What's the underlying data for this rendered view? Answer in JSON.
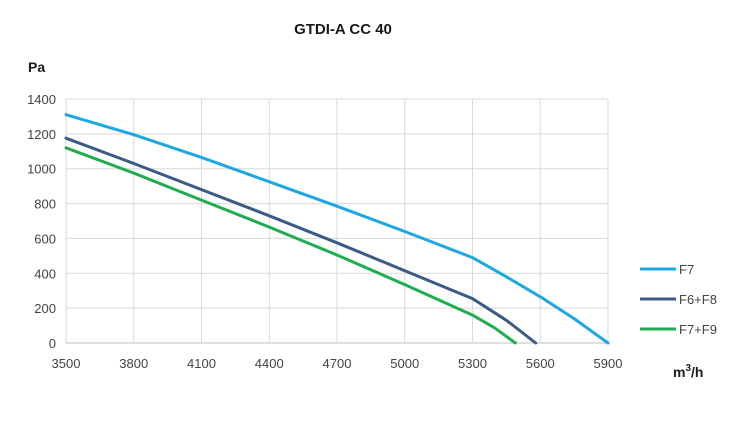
{
  "chart_data": {
    "type": "line",
    "title": "GTDI-A CC 40",
    "ylabel": "Pa",
    "xlabel_main": "m",
    "xlabel_sup": "3",
    "xlabel_tail": "/h",
    "xlim": [
      3500,
      5900
    ],
    "ylim": [
      0,
      1400
    ],
    "x_ticks": [
      "3500",
      "3800",
      "4100",
      "4400",
      "4700",
      "5000",
      "5300",
      "5600",
      "5900"
    ],
    "y_ticks": [
      "0",
      "200",
      "400",
      "600",
      "800",
      "1000",
      "1200",
      "1400"
    ],
    "grid": true,
    "legend_position": "right",
    "series": [
      {
        "name": "F7",
        "color": "#1ea8e0",
        "points": [
          [
            3500,
            1310
          ],
          [
            3800,
            1195
          ],
          [
            4100,
            1065
          ],
          [
            4400,
            925
          ],
          [
            4700,
            785
          ],
          [
            5000,
            640
          ],
          [
            5300,
            490
          ],
          [
            5450,
            380
          ],
          [
            5600,
            265
          ],
          [
            5750,
            140
          ],
          [
            5900,
            0
          ]
        ]
      },
      {
        "name": "F6+F8",
        "color": "#3b5a85",
        "points": [
          [
            3500,
            1175
          ],
          [
            3800,
            1030
          ],
          [
            4100,
            880
          ],
          [
            4400,
            730
          ],
          [
            4700,
            575
          ],
          [
            5000,
            415
          ],
          [
            5300,
            255
          ],
          [
            5450,
            130
          ],
          [
            5580,
            0
          ]
        ]
      },
      {
        "name": "F7+F9",
        "color": "#1fad4f",
        "points": [
          [
            3500,
            1120
          ],
          [
            3800,
            975
          ],
          [
            4100,
            820
          ],
          [
            4400,
            665
          ],
          [
            4700,
            505
          ],
          [
            5000,
            335
          ],
          [
            5300,
            160
          ],
          [
            5400,
            85
          ],
          [
            5490,
            0
          ]
        ]
      }
    ]
  }
}
